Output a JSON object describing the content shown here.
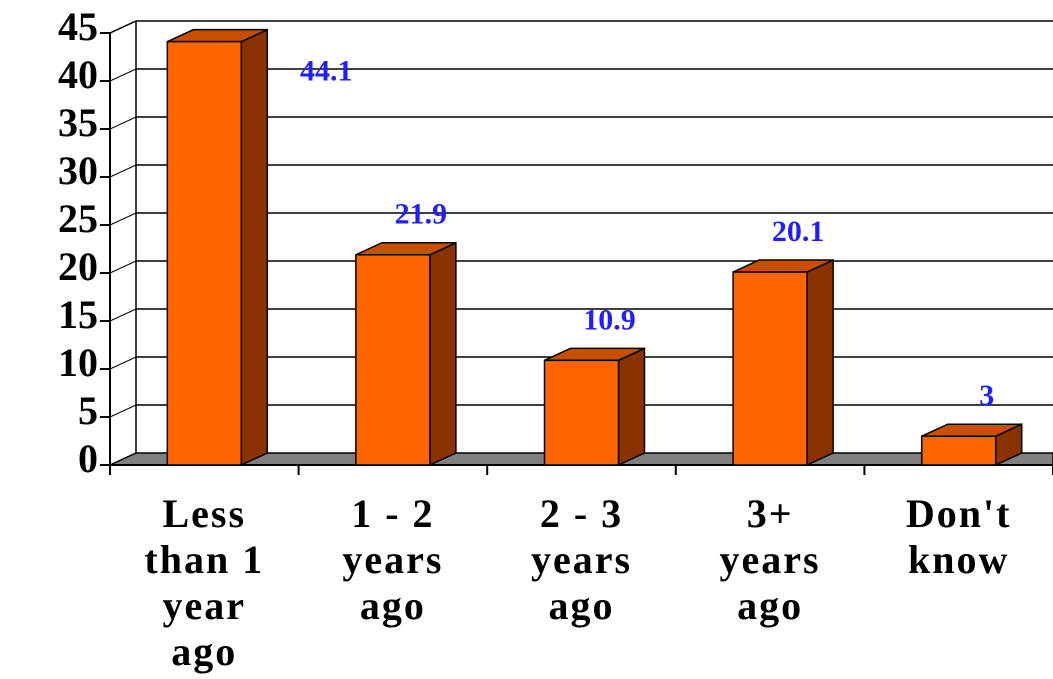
{
  "chart_data": {
    "type": "bar3d",
    "categories": [
      "Less\nthan 1\nyear\nago",
      "1 - 2\nyears\nago",
      "2 - 3\nyears\nago",
      "3+\nyears\nago",
      "Don't\nknow"
    ],
    "values": [
      44.1,
      21.9,
      10.9,
      20.1,
      3
    ],
    "color": "#ff6600",
    "side_color": "#8b3300",
    "label_color": "#1f1fff",
    "ylim": [
      0,
      45
    ],
    "yticks": [
      0,
      5,
      10,
      15,
      20,
      25,
      30,
      35,
      40,
      45
    ],
    "grid": true
  }
}
